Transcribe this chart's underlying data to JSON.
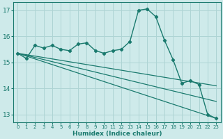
{
  "xlabel": "Humidex (Indice chaleur)",
  "background_color": "#ceeaea",
  "grid_color": "#aed4d4",
  "line_color": "#1a7a6e",
  "xlim": [
    -0.5,
    23.5
  ],
  "ylim": [
    12.7,
    17.3
  ],
  "yticks": [
    13,
    14,
    15,
    16,
    17
  ],
  "xticks": [
    0,
    1,
    2,
    3,
    4,
    5,
    6,
    7,
    8,
    9,
    10,
    11,
    12,
    13,
    14,
    15,
    16,
    17,
    18,
    19,
    20,
    21,
    22,
    23
  ],
  "main_x": [
    0,
    1,
    2,
    3,
    4,
    5,
    6,
    7,
    8,
    9,
    10,
    11,
    12,
    13,
    14,
    15,
    16,
    17,
    18,
    19,
    20,
    21,
    22,
    23
  ],
  "main_y": [
    15.35,
    15.15,
    15.65,
    15.55,
    15.65,
    15.5,
    15.45,
    15.7,
    15.75,
    15.45,
    15.35,
    15.45,
    15.5,
    15.8,
    17.0,
    17.05,
    16.75,
    15.85,
    15.1,
    14.2,
    14.3,
    14.15,
    13.0,
    12.85
  ],
  "trend1_x": [
    0,
    23
  ],
  "trend1_y": [
    15.35,
    12.85
  ],
  "trend2_x": [
    0,
    23
  ],
  "trend2_y": [
    15.35,
    13.5
  ],
  "trend3_x": [
    0,
    23
  ],
  "trend3_y": [
    15.35,
    14.1
  ]
}
